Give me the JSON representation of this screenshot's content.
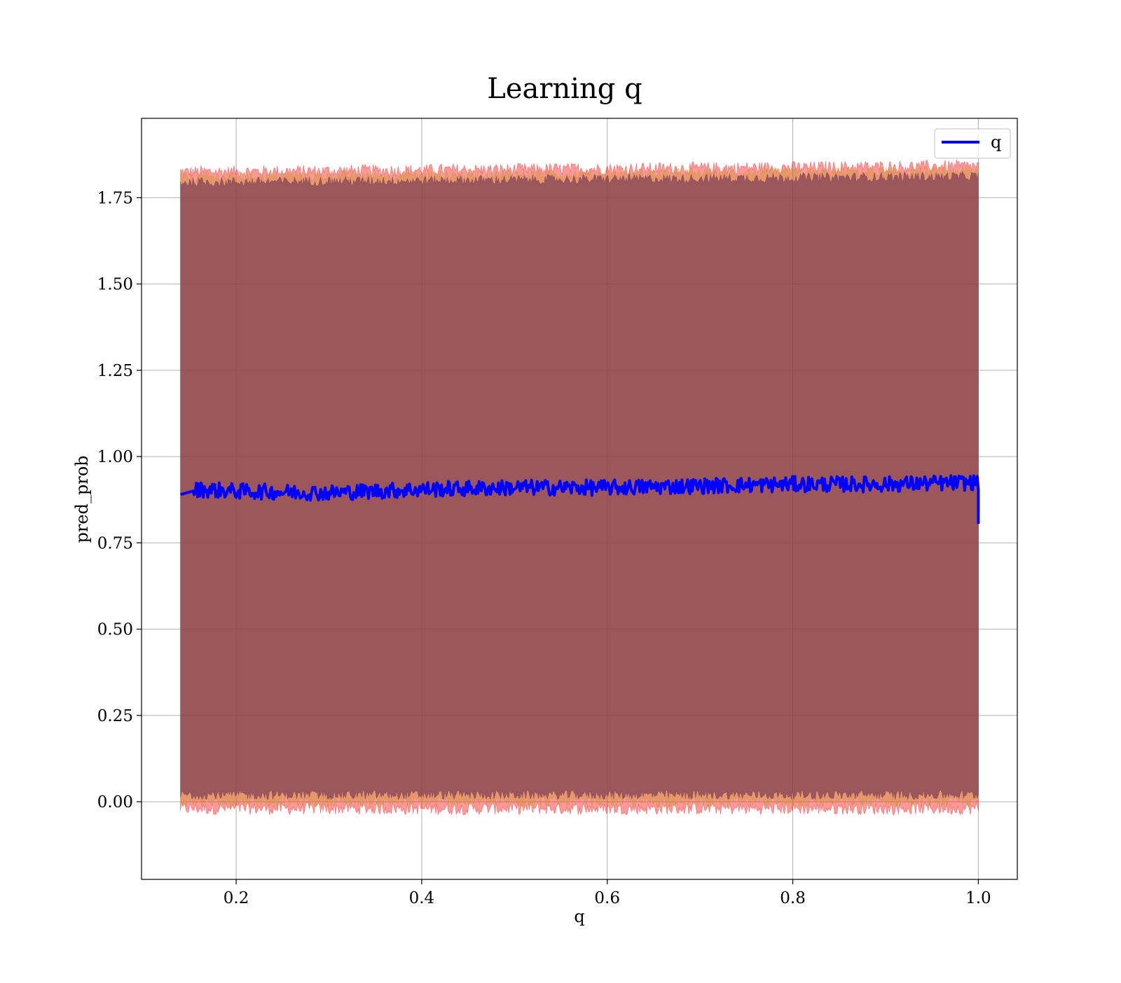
{
  "chart_data": {
    "type": "line",
    "title": "Learning q",
    "xlabel": "q",
    "ylabel": "pred_prob",
    "xlim": [
      0.098,
      1.042
    ],
    "ylim": [
      -0.225,
      1.98
    ],
    "x_ticks": [
      0.2,
      0.4,
      0.6,
      0.8,
      1.0
    ],
    "x_tick_labels": [
      "0.2",
      "0.4",
      "0.6",
      "0.8",
      "1.0"
    ],
    "y_ticks": [
      0.0,
      0.25,
      0.5,
      0.75,
      1.0,
      1.25,
      1.5,
      1.75
    ],
    "y_tick_labels": [
      "0.00",
      "0.25",
      "0.50",
      "0.75",
      "1.00",
      "1.25",
      "1.50",
      "1.75"
    ],
    "grid": true,
    "legend": {
      "position": "top-right",
      "entries": [
        "q"
      ]
    },
    "colors": {
      "line": "#0000ff",
      "band_outer": "#ff0000",
      "band_middle": "#c89632",
      "band_inner": "#6a2c54",
      "grid": "#b0b0b0"
    },
    "series": [
      {
        "name": "q",
        "x_range": [
          0.14,
          1.0
        ],
        "anchors": [
          [
            0.14,
            0.89
          ],
          [
            0.16,
            0.905
          ],
          [
            0.2,
            0.9
          ],
          [
            0.3,
            0.895
          ],
          [
            0.4,
            0.905
          ],
          [
            0.5,
            0.91
          ],
          [
            0.6,
            0.91
          ],
          [
            0.7,
            0.915
          ],
          [
            0.8,
            0.92
          ],
          [
            0.9,
            0.92
          ],
          [
            1.0,
            0.925
          ]
        ],
        "end_drop": 0.805
      }
    ],
    "bands": [
      {
        "role": "outer",
        "upper_mean": 1.825,
        "lower_mean": -0.02
      },
      {
        "role": "middle",
        "upper_mean": 1.81,
        "lower_mean": 0.0
      },
      {
        "role": "inner",
        "upper_mean": 1.795,
        "lower_mean": 0.02
      }
    ]
  }
}
